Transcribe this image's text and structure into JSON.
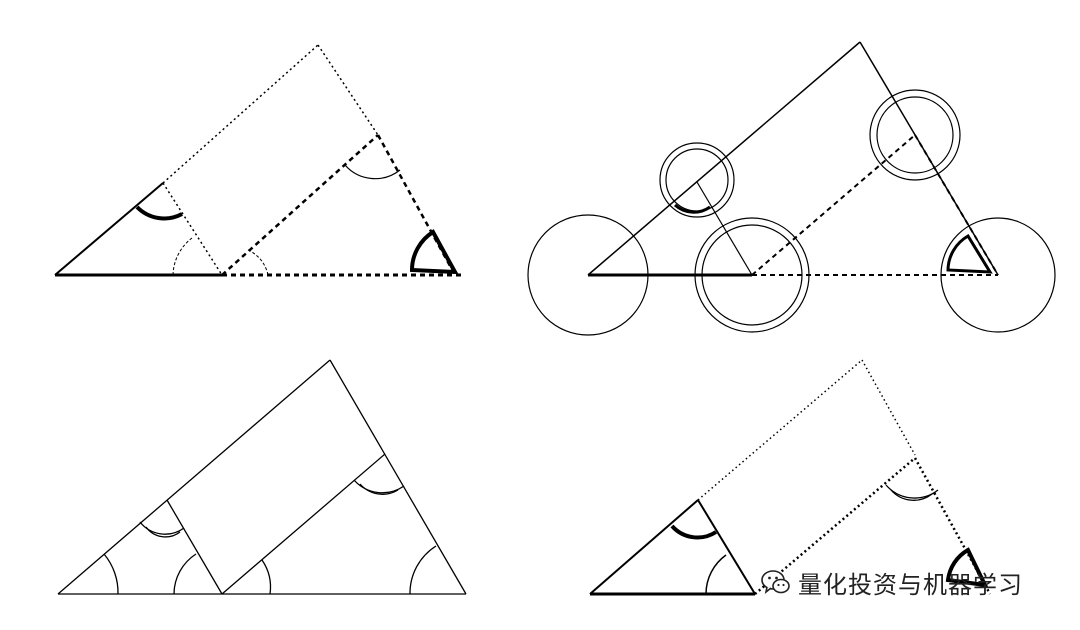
{
  "diagram": {
    "panels": [
      {
        "id": "top-left",
        "style": "dotted-construction"
      },
      {
        "id": "top-right",
        "style": "circled-vertices"
      },
      {
        "id": "bottom-left",
        "style": "solid-outline"
      },
      {
        "id": "bottom-right",
        "style": "dotted-construction"
      }
    ],
    "colors": {
      "ink": "#000000",
      "background": "#ffffff"
    }
  },
  "watermark": {
    "icon": "wechat-icon",
    "text": "量化投资与机器学习"
  }
}
